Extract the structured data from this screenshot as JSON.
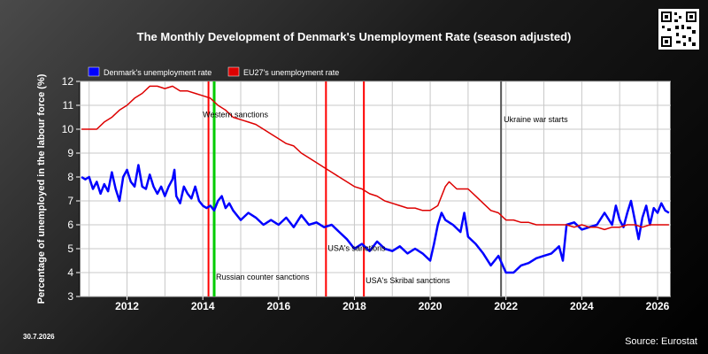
{
  "date_stamp": "30.7.2026",
  "source": "Source: Eurostat",
  "qr_icon": "qr-code-icon",
  "chart_data": {
    "type": "line",
    "title": "The Monthly Development of Denmark's Unemployment Rate (season adjusted)",
    "xlabel": "",
    "ylabel": "Percentage of unemployed in the labour force (%)",
    "xlim": [
      2010.75,
      2026.35
    ],
    "ylim": [
      3,
      12
    ],
    "xticks": [
      "2012",
      "2014",
      "2016",
      "2018",
      "2020",
      "2022",
      "2024",
      "2026"
    ],
    "yticks": [
      "3",
      "4",
      "5",
      "6",
      "7",
      "8",
      "9",
      "10",
      "11",
      "12"
    ],
    "grid": true,
    "legend": "top-left",
    "series": [
      {
        "name": "Denmark's unemployment rate",
        "color": "#0000ff",
        "points": [
          [
            2010.8,
            8.0
          ],
          [
            2010.9,
            7.9
          ],
          [
            2011.0,
            8.0
          ],
          [
            2011.1,
            7.5
          ],
          [
            2011.2,
            7.8
          ],
          [
            2011.3,
            7.3
          ],
          [
            2011.4,
            7.7
          ],
          [
            2011.5,
            7.4
          ],
          [
            2011.6,
            8.2
          ],
          [
            2011.7,
            7.5
          ],
          [
            2011.8,
            7.0
          ],
          [
            2011.9,
            8.0
          ],
          [
            2012.0,
            8.3
          ],
          [
            2012.1,
            7.8
          ],
          [
            2012.2,
            7.6
          ],
          [
            2012.3,
            8.5
          ],
          [
            2012.4,
            7.6
          ],
          [
            2012.5,
            7.5
          ],
          [
            2012.6,
            8.1
          ],
          [
            2012.7,
            7.6
          ],
          [
            2012.8,
            7.3
          ],
          [
            2012.9,
            7.6
          ],
          [
            2013.0,
            7.2
          ],
          [
            2013.1,
            7.6
          ],
          [
            2013.2,
            7.9
          ],
          [
            2013.25,
            8.3
          ],
          [
            2013.3,
            7.2
          ],
          [
            2013.4,
            6.9
          ],
          [
            2013.5,
            7.6
          ],
          [
            2013.6,
            7.3
          ],
          [
            2013.7,
            7.1
          ],
          [
            2013.8,
            7.6
          ],
          [
            2013.9,
            7.0
          ],
          [
            2014.0,
            6.8
          ],
          [
            2014.1,
            6.7
          ],
          [
            2014.2,
            6.8
          ],
          [
            2014.3,
            6.6
          ],
          [
            2014.4,
            7.0
          ],
          [
            2014.5,
            7.2
          ],
          [
            2014.6,
            6.7
          ],
          [
            2014.7,
            6.9
          ],
          [
            2014.8,
            6.6
          ],
          [
            2015.0,
            6.2
          ],
          [
            2015.2,
            6.5
          ],
          [
            2015.4,
            6.3
          ],
          [
            2015.6,
            6.0
          ],
          [
            2015.8,
            6.2
          ],
          [
            2016.0,
            6.0
          ],
          [
            2016.2,
            6.3
          ],
          [
            2016.4,
            5.9
          ],
          [
            2016.6,
            6.4
          ],
          [
            2016.8,
            6.0
          ],
          [
            2017.0,
            6.1
          ],
          [
            2017.2,
            5.9
          ],
          [
            2017.4,
            6.0
          ],
          [
            2017.6,
            5.7
          ],
          [
            2017.8,
            5.4
          ],
          [
            2018.0,
            5.0
          ],
          [
            2018.2,
            5.2
          ],
          [
            2018.4,
            4.9
          ],
          [
            2018.6,
            5.3
          ],
          [
            2018.8,
            5.0
          ],
          [
            2019.0,
            4.9
          ],
          [
            2019.2,
            5.1
          ],
          [
            2019.4,
            4.8
          ],
          [
            2019.6,
            5.0
          ],
          [
            2019.8,
            4.8
          ],
          [
            2020.0,
            4.5
          ],
          [
            2020.1,
            5.2
          ],
          [
            2020.2,
            6.0
          ],
          [
            2020.3,
            6.5
          ],
          [
            2020.4,
            6.2
          ],
          [
            2020.6,
            6.0
          ],
          [
            2020.8,
            5.7
          ],
          [
            2020.9,
            6.5
          ],
          [
            2021.0,
            5.5
          ],
          [
            2021.2,
            5.2
          ],
          [
            2021.4,
            4.8
          ],
          [
            2021.6,
            4.3
          ],
          [
            2021.8,
            4.7
          ],
          [
            2022.0,
            4.0
          ],
          [
            2022.2,
            4.0
          ],
          [
            2022.4,
            4.3
          ],
          [
            2022.6,
            4.4
          ],
          [
            2022.8,
            4.6
          ],
          [
            2023.0,
            4.7
          ],
          [
            2023.2,
            4.8
          ],
          [
            2023.4,
            5.1
          ],
          [
            2023.5,
            4.5
          ],
          [
            2023.6,
            6.0
          ],
          [
            2023.8,
            6.1
          ],
          [
            2024.0,
            5.8
          ],
          [
            2024.2,
            5.9
          ],
          [
            2024.4,
            6.0
          ],
          [
            2024.6,
            6.5
          ],
          [
            2024.8,
            6.0
          ],
          [
            2024.9,
            6.8
          ],
          [
            2025.0,
            6.2
          ],
          [
            2025.1,
            5.9
          ],
          [
            2025.2,
            6.5
          ],
          [
            2025.3,
            7.0
          ],
          [
            2025.4,
            6.2
          ],
          [
            2025.5,
            5.4
          ],
          [
            2025.6,
            6.3
          ],
          [
            2025.7,
            6.8
          ],
          [
            2025.8,
            6.0
          ],
          [
            2025.9,
            6.7
          ],
          [
            2026.0,
            6.5
          ],
          [
            2026.1,
            6.9
          ],
          [
            2026.2,
            6.6
          ],
          [
            2026.3,
            6.5
          ]
        ]
      },
      {
        "name": "EU27's unemployment rate",
        "color": "#dd0000",
        "points": [
          [
            2010.8,
            10.0
          ],
          [
            2011.0,
            10.0
          ],
          [
            2011.2,
            10.0
          ],
          [
            2011.4,
            10.3
          ],
          [
            2011.6,
            10.5
          ],
          [
            2011.8,
            10.8
          ],
          [
            2012.0,
            11.0
          ],
          [
            2012.2,
            11.3
          ],
          [
            2012.4,
            11.5
          ],
          [
            2012.6,
            11.8
          ],
          [
            2012.8,
            11.8
          ],
          [
            2013.0,
            11.7
          ],
          [
            2013.2,
            11.8
          ],
          [
            2013.4,
            11.6
          ],
          [
            2013.6,
            11.6
          ],
          [
            2013.8,
            11.5
          ],
          [
            2014.0,
            11.4
          ],
          [
            2014.2,
            11.3
          ],
          [
            2014.4,
            11.0
          ],
          [
            2014.6,
            10.8
          ],
          [
            2014.8,
            10.5
          ],
          [
            2015.0,
            10.4
          ],
          [
            2015.2,
            10.3
          ],
          [
            2015.4,
            10.2
          ],
          [
            2015.6,
            10.0
          ],
          [
            2015.8,
            9.8
          ],
          [
            2016.0,
            9.6
          ],
          [
            2016.2,
            9.4
          ],
          [
            2016.4,
            9.3
          ],
          [
            2016.6,
            9.0
          ],
          [
            2016.8,
            8.8
          ],
          [
            2017.0,
            8.6
          ],
          [
            2017.2,
            8.4
          ],
          [
            2017.4,
            8.2
          ],
          [
            2017.6,
            8.0
          ],
          [
            2017.8,
            7.8
          ],
          [
            2018.0,
            7.6
          ],
          [
            2018.2,
            7.5
          ],
          [
            2018.4,
            7.3
          ],
          [
            2018.6,
            7.2
          ],
          [
            2018.8,
            7.0
          ],
          [
            2019.0,
            6.9
          ],
          [
            2019.2,
            6.8
          ],
          [
            2019.4,
            6.7
          ],
          [
            2019.6,
            6.7
          ],
          [
            2019.8,
            6.6
          ],
          [
            2020.0,
            6.6
          ],
          [
            2020.2,
            6.8
          ],
          [
            2020.4,
            7.6
          ],
          [
            2020.5,
            7.8
          ],
          [
            2020.7,
            7.5
          ],
          [
            2020.8,
            7.5
          ],
          [
            2021.0,
            7.5
          ],
          [
            2021.2,
            7.2
          ],
          [
            2021.4,
            6.9
          ],
          [
            2021.6,
            6.6
          ],
          [
            2021.8,
            6.5
          ],
          [
            2022.0,
            6.2
          ],
          [
            2022.2,
            6.2
          ],
          [
            2022.4,
            6.1
          ],
          [
            2022.6,
            6.1
          ],
          [
            2022.8,
            6.0
          ],
          [
            2023.0,
            6.0
          ],
          [
            2023.2,
            6.0
          ],
          [
            2023.4,
            6.0
          ],
          [
            2023.6,
            6.0
          ],
          [
            2023.8,
            5.9
          ],
          [
            2024.0,
            6.0
          ],
          [
            2024.2,
            5.9
          ],
          [
            2024.4,
            5.9
          ],
          [
            2024.6,
            5.8
          ],
          [
            2024.8,
            5.9
          ],
          [
            2025.0,
            5.9
          ],
          [
            2025.2,
            6.0
          ],
          [
            2025.4,
            6.0
          ],
          [
            2025.6,
            5.9
          ],
          [
            2025.8,
            6.0
          ],
          [
            2026.0,
            6.0
          ],
          [
            2026.2,
            6.0
          ],
          [
            2026.3,
            6.0
          ]
        ]
      }
    ],
    "events": [
      {
        "label": "Western sanctions",
        "x": 2014.15,
        "color": "#ff0000",
        "label_pos": "upper"
      },
      {
        "label": "Russian counter sanctions",
        "x": 2014.3,
        "color": "#00cc00",
        "label_pos": "lower"
      },
      {
        "label": "USA's sanctions",
        "x": 2017.25,
        "color": "#ff0000",
        "label_pos": "lower"
      },
      {
        "label": "USA's Skribal sanctions",
        "x": 2018.25,
        "color": "#ff0000",
        "label_pos": "bottom"
      },
      {
        "label": "Ukraine war starts",
        "x": 2021.87,
        "color": "#555555",
        "label_pos": "upper"
      }
    ]
  }
}
